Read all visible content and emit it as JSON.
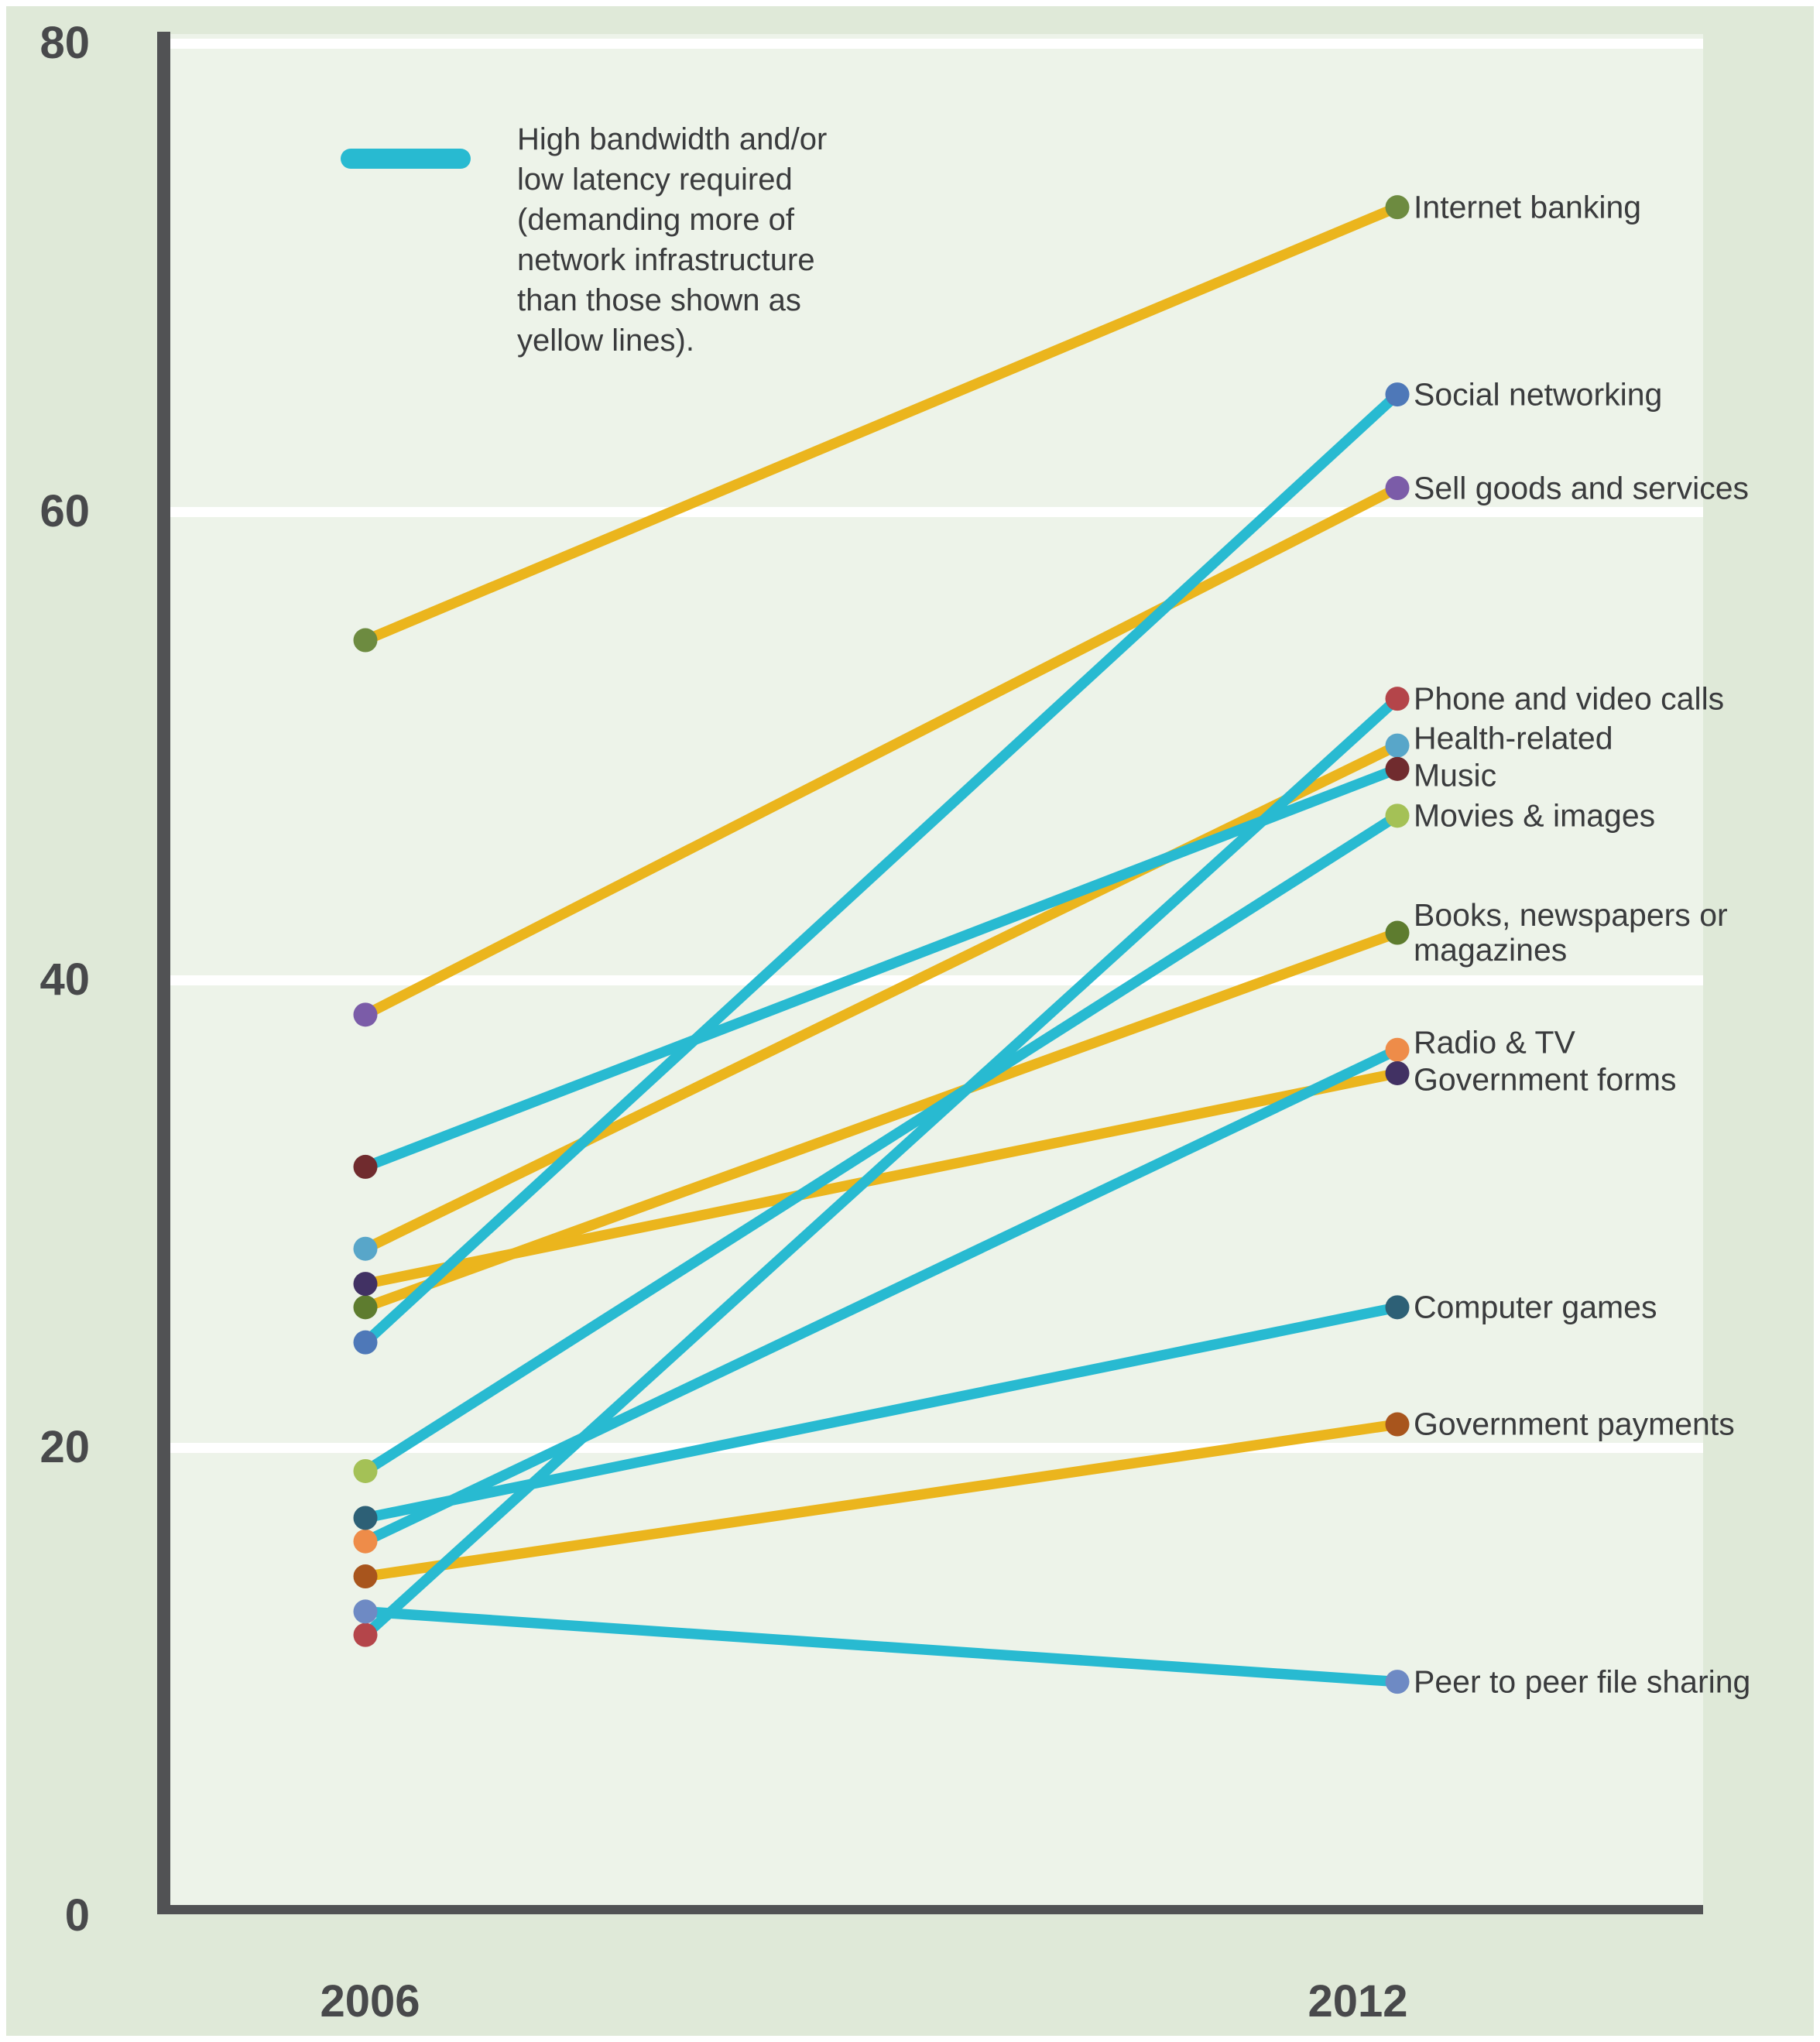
{
  "figure": {
    "panel_bg": "#dfe9d8",
    "plot_bg": "#edf3e9",
    "axis_color": "#515254",
    "gridline_color": "#ffffff",
    "tick_text_color": "#48494b",
    "label_text_color": "#3a3b3d"
  },
  "legend": {
    "swatch_color": "#28bad1",
    "text": "High bandwidth and/or\nlow latency required\n(demanding more of\nnetwork infrastructure\nthan those shown as\nyellow lines)."
  },
  "chart_data": {
    "type": "line",
    "subtype": "slope-graph",
    "title": "",
    "x_categories": [
      "2006",
      "2012"
    ],
    "yticks": [
      0,
      20,
      40,
      60,
      80
    ],
    "ylim": [
      0,
      80
    ],
    "grid": "horizontal-white-lines",
    "legend_position": "top-left-inside",
    "palette": {
      "high_bandwidth_line": "#28bad1",
      "low_bandwidth_line": "#ebb51d"
    },
    "series": [
      {
        "name": "Internet banking",
        "bandwidth": "low",
        "dot_color": "#6d8b40",
        "values": [
          54.5,
          73
        ]
      },
      {
        "name": "Social networking",
        "bandwidth": "high",
        "dot_color": "#4e78b8",
        "values": [
          24.5,
          65
        ]
      },
      {
        "name": "Sell goods and services",
        "bandwidth": "low",
        "dot_color": "#7b5ca8",
        "values": [
          38.5,
          61
        ]
      },
      {
        "name": "Phone and video calls",
        "bandwidth": "high",
        "dot_color": "#b4454a",
        "values": [
          12,
          52
        ]
      },
      {
        "name": "Health-related",
        "bandwidth": "low",
        "dot_color": "#58a6c9",
        "values": [
          28.5,
          50
        ]
      },
      {
        "name": "Music",
        "bandwidth": "high",
        "dot_color": "#702b2e",
        "values": [
          32,
          49
        ]
      },
      {
        "name": "Movies & images",
        "bandwidth": "high",
        "dot_color": "#a4c156",
        "values": [
          19,
          47
        ]
      },
      {
        "name": "Books, newspapers or magazines",
        "label": "Books, newspapers or\nmagazines",
        "bandwidth": "low",
        "dot_color": "#5e7c2f",
        "values": [
          26,
          42
        ]
      },
      {
        "name": "Radio & TV",
        "bandwidth": "high",
        "dot_color": "#ee8c49",
        "values": [
          16,
          37
        ]
      },
      {
        "name": "Government forms",
        "bandwidth": "low",
        "dot_color": "#413163",
        "values": [
          27,
          36
        ]
      },
      {
        "name": "Computer games",
        "bandwidth": "high",
        "dot_color": "#2d6076",
        "values": [
          17,
          26
        ]
      },
      {
        "name": "Government payments",
        "bandwidth": "low",
        "dot_color": "#a8551d",
        "values": [
          14.5,
          21
        ]
      },
      {
        "name": "Peer to peer file sharing",
        "bandwidth": "high",
        "dot_color": "#6e8ac4",
        "values": [
          13,
          10
        ]
      }
    ]
  }
}
